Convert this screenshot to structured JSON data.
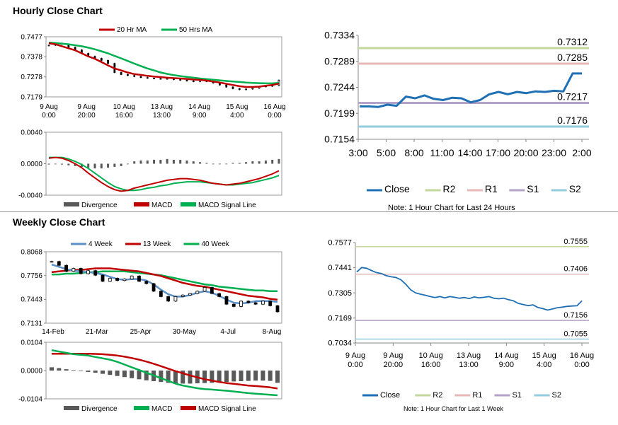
{
  "titles": {
    "hourly": "Hourly Close Chart",
    "weekly": "Weekly Close Chart"
  },
  "colors": {
    "ma20": "#c00000",
    "ma50": "#00b050",
    "close": "#1f6fb5",
    "r2": "#c3d69b",
    "r1": "#e6b9b8",
    "s1": "#b3a2c7",
    "s2": "#93cddd",
    "week4": "#5b8fc7",
    "week13": "#c00000",
    "week40": "#00b050",
    "divergence": "#595959"
  },
  "notes": {
    "hourly_levels": "Note: 1 Hour Chart for Last 24 Hours",
    "weekly_levels": "Note: 1 Hour Chart for Last 1 Week"
  },
  "chart_data": [
    {
      "id": "hourly-price",
      "type": "line",
      "legend": [
        "20 Hr MA",
        "50 Hrs MA"
      ],
      "y_ticks": [
        "0.7477",
        "0.7378",
        "0.7278",
        "0.7179"
      ],
      "ylim": [
        0.7179,
        0.7477
      ],
      "x_ticks": [
        "9 Aug|0:00",
        "9 Aug|20:00",
        "10 Aug|16:00",
        "13 Aug|13:00",
        "14 Aug|9:00",
        "15 Aug|4:00",
        "16 Aug|0:00"
      ],
      "close": [
        0.7435,
        0.7445,
        0.744,
        0.7425,
        0.7412,
        0.7395,
        0.738,
        0.737,
        0.736,
        0.7345,
        0.73,
        0.729,
        0.7285,
        0.728,
        0.7275,
        0.7272,
        0.727,
        0.7268,
        0.727,
        0.7265,
        0.7262,
        0.7258,
        0.7255,
        0.7262,
        0.7255,
        0.7248,
        0.7238,
        0.7228,
        0.722,
        0.7215,
        0.7218,
        0.7222,
        0.723,
        0.7232,
        0.7235,
        0.7262
      ],
      "series": [
        {
          "name": "20 Hr MA",
          "values": [
            0.7445,
            0.744,
            0.743,
            0.742,
            0.741,
            0.7395,
            0.738,
            0.7368,
            0.7352,
            0.7335,
            0.732,
            0.731,
            0.73,
            0.7292,
            0.7288,
            0.7283,
            0.728,
            0.7277,
            0.7274,
            0.7272,
            0.727,
            0.7268,
            0.7265,
            0.7263,
            0.726,
            0.7255,
            0.725,
            0.7244,
            0.7238,
            0.7232,
            0.7228,
            0.7228,
            0.723,
            0.7234,
            0.7238,
            0.7245
          ]
        },
        {
          "name": "50 Hrs MA",
          "values": [
            0.7448,
            0.7446,
            0.7443,
            0.744,
            0.7435,
            0.743,
            0.7423,
            0.7415,
            0.7405,
            0.7395,
            0.7382,
            0.737,
            0.7357,
            0.7344,
            0.7332,
            0.732,
            0.731,
            0.73,
            0.7293,
            0.7287,
            0.7282,
            0.7278,
            0.7274,
            0.727,
            0.7267,
            0.7264,
            0.7261,
            0.7258,
            0.7255,
            0.7253,
            0.725,
            0.7248,
            0.7247,
            0.7246,
            0.7246,
            0.7248
          ]
        }
      ]
    },
    {
      "id": "hourly-macd",
      "type": "line",
      "legend": [
        "Divergence",
        "MACD",
        "MACD Signal Line"
      ],
      "y_ticks": [
        "0.0040",
        "0.0000",
        "-0.0040"
      ],
      "ylim": [
        -0.004,
        0.004
      ],
      "series": [
        {
          "name": "MACD",
          "values": [
            0.0007,
            0.0008,
            0.0007,
            0.0004,
            0.0,
            -0.0005,
            -0.0012,
            -0.0018,
            -0.0024,
            -0.0029,
            -0.0033,
            -0.0035,
            -0.0034,
            -0.0031,
            -0.0029,
            -0.0027,
            -0.0025,
            -0.0023,
            -0.0021,
            -0.002,
            -0.0019,
            -0.0019,
            -0.002,
            -0.0021,
            -0.0023,
            -0.0025,
            -0.0026,
            -0.0027,
            -0.0026,
            -0.0025,
            -0.0023,
            -0.0021,
            -0.0019,
            -0.0016,
            -0.0013,
            -0.0009
          ]
        },
        {
          "name": "MACD Signal Line",
          "values": [
            0.0008,
            0.0008,
            0.0008,
            0.0006,
            0.0003,
            -0.0001,
            -0.0006,
            -0.0012,
            -0.0018,
            -0.0024,
            -0.0029,
            -0.0032,
            -0.0034,
            -0.0034,
            -0.0033,
            -0.0031,
            -0.003,
            -0.0028,
            -0.0027,
            -0.0025,
            -0.0024,
            -0.0023,
            -0.0023,
            -0.0023,
            -0.0024,
            -0.0025,
            -0.0026,
            -0.0027,
            -0.0027,
            -0.0026,
            -0.0025,
            -0.0024,
            -0.0022,
            -0.002,
            -0.0018,
            -0.0015
          ]
        },
        {
          "name": "Divergence",
          "values": [
            -0.0001,
            0.0,
            -0.0001,
            -0.0002,
            -0.0003,
            -0.0004,
            -0.0005,
            -0.0006,
            -0.0006,
            -0.0005,
            -0.0004,
            -0.0003,
            0.0,
            0.0003,
            0.0004,
            0.0004,
            0.0005,
            0.0005,
            0.0006,
            0.0005,
            0.0005,
            0.0004,
            0.0003,
            0.0002,
            0.0001,
            0.0,
            0.0,
            0.0,
            0.0001,
            0.0001,
            0.0002,
            0.0003,
            0.0003,
            0.0004,
            0.0005,
            0.0006
          ]
        }
      ]
    },
    {
      "id": "hourly-levels",
      "type": "line",
      "y_ticks": [
        "0.7334",
        "0.7289",
        "0.7244",
        "0.7199",
        "0.7154"
      ],
      "ylim": [
        0.7154,
        0.7334
      ],
      "x_ticks": [
        "3:00",
        "5:00",
        "8:00",
        "11:00",
        "14:00",
        "17:00",
        "20:00",
        "23:00",
        "2:00"
      ],
      "legend": [
        "Close",
        "R2",
        "R1",
        "S1",
        "S2"
      ],
      "levels": [
        {
          "name": "R2",
          "value": 0.7312,
          "label": "0.7312"
        },
        {
          "name": "R1",
          "value": 0.7285,
          "label": "0.7285"
        },
        {
          "name": "S1",
          "value": 0.7217,
          "label": "0.7217"
        },
        {
          "name": "S2",
          "value": 0.7176,
          "label": "0.7176"
        }
      ],
      "close": [
        0.7211,
        0.7211,
        0.721,
        0.7214,
        0.7212,
        0.7228,
        0.7225,
        0.723,
        0.7224,
        0.7222,
        0.7226,
        0.7225,
        0.7218,
        0.7222,
        0.7232,
        0.7236,
        0.7232,
        0.7236,
        0.7234,
        0.7237,
        0.7236,
        0.7238,
        0.7237,
        0.7268,
        0.7268
      ]
    },
    {
      "id": "weekly-price",
      "type": "line",
      "legend": [
        "4 Week",
        "13 Week",
        "40 Week"
      ],
      "y_ticks": [
        "0.8068",
        "0.7756",
        "0.7443",
        "0.7131"
      ],
      "ylim": [
        0.7131,
        0.8068
      ],
      "x_ticks": [
        "14-Feb",
        "21-Mar",
        "25-Apr",
        "30-May",
        "4-Jul",
        "8-Aug"
      ],
      "close": [
        0.794,
        0.789,
        0.781,
        0.785,
        0.778,
        0.782,
        0.776,
        0.768,
        0.772,
        0.769,
        0.771,
        0.775,
        0.768,
        0.765,
        0.755,
        0.748,
        0.742,
        0.748,
        0.75,
        0.752,
        0.755,
        0.76,
        0.752,
        0.748,
        0.738,
        0.735,
        0.742,
        0.74,
        0.738,
        0.742,
        0.736,
        0.728
      ],
      "series": [
        {
          "name": "4 Week",
          "values": [
            0.79,
            0.787,
            0.784,
            0.782,
            0.781,
            0.78,
            0.779,
            0.777,
            0.774,
            0.771,
            0.77,
            0.771,
            0.771,
            0.769,
            0.764,
            0.757,
            0.751,
            0.748,
            0.748,
            0.75,
            0.753,
            0.755,
            0.753,
            0.749,
            0.744,
            0.74,
            0.739,
            0.74,
            0.742,
            0.742,
            0.742,
            0.741
          ]
        },
        {
          "name": "13 Week",
          "values": [
            0.78,
            0.781,
            0.782,
            0.783,
            0.783,
            0.784,
            0.785,
            0.785,
            0.785,
            0.784,
            0.783,
            0.782,
            0.781,
            0.779,
            0.777,
            0.775,
            0.772,
            0.769,
            0.766,
            0.764,
            0.762,
            0.761,
            0.759,
            0.757,
            0.755,
            0.753,
            0.751,
            0.749,
            0.748,
            0.747,
            0.745,
            0.744
          ]
        },
        {
          "name": "40 Week",
          "values": [
            0.777,
            0.777,
            0.778,
            0.778,
            0.779,
            0.78,
            0.78,
            0.781,
            0.781,
            0.781,
            0.781,
            0.78,
            0.779,
            0.778,
            0.777,
            0.776,
            0.774,
            0.772,
            0.77,
            0.768,
            0.766,
            0.764,
            0.763,
            0.761,
            0.76,
            0.759,
            0.758,
            0.757,
            0.756,
            0.756,
            0.755,
            0.755
          ]
        }
      ]
    },
    {
      "id": "weekly-macd",
      "type": "line",
      "legend": [
        "Divergence",
        "MACD",
        "MACD Signal Line"
      ],
      "y_ticks": [
        "0.0104",
        "0.0000",
        "-0.0104"
      ],
      "ylim": [
        -0.0104,
        0.0104
      ],
      "series": [
        {
          "name": "MACD",
          "values": [
            0.0075,
            0.007,
            0.0065,
            0.006,
            0.0058,
            0.0055,
            0.005,
            0.0045,
            0.004,
            0.0032,
            0.0022,
            0.0012,
            0.0002,
            -0.0008,
            -0.0018,
            -0.0028,
            -0.0038,
            -0.0048,
            -0.0055,
            -0.006,
            -0.0065,
            -0.0068,
            -0.007,
            -0.0072,
            -0.0074,
            -0.0077,
            -0.008,
            -0.0083,
            -0.0085,
            -0.0087,
            -0.0089,
            -0.0091
          ]
        },
        {
          "name": "MACD Signal Line",
          "values": [
            0.0062,
            0.0062,
            0.0062,
            0.0062,
            0.0062,
            0.0062,
            0.0061,
            0.006,
            0.0058,
            0.0055,
            0.0051,
            0.0046,
            0.004,
            0.0033,
            0.0025,
            0.0016,
            0.0007,
            -0.0002,
            -0.001,
            -0.0018,
            -0.0025,
            -0.0032,
            -0.0037,
            -0.0042,
            -0.0046,
            -0.0049,
            -0.0052,
            -0.0055,
            -0.0057,
            -0.0059,
            -0.0062,
            -0.0066
          ]
        },
        {
          "name": "Divergence",
          "values": [
            0.0012,
            0.0009,
            0.0005,
            0.0002,
            -0.0002,
            -0.0005,
            -0.0008,
            -0.0012,
            -0.0016,
            -0.002,
            -0.0024,
            -0.0028,
            -0.0032,
            -0.0036,
            -0.0039,
            -0.0042,
            -0.0045,
            -0.0047,
            -0.0048,
            -0.0048,
            -0.0047,
            -0.0046,
            -0.0045,
            -0.0044,
            -0.0042,
            -0.004,
            -0.0039,
            -0.0038,
            -0.0037,
            -0.0037,
            -0.0038,
            -0.0045
          ]
        }
      ]
    },
    {
      "id": "weekly-levels",
      "type": "line",
      "y_ticks": [
        "0.7577",
        "0.7441",
        "0.7305",
        "0.7169",
        "0.7034"
      ],
      "ylim": [
        0.7034,
        0.7577
      ],
      "x_ticks": [
        "9 Aug|0:00",
        "9 Aug|20:00",
        "10 Aug|16:00",
        "13 Aug|13:00",
        "14 Aug|9:00",
        "15 Aug|4:00",
        "16 Aug|0:00"
      ],
      "legend": [
        "Close",
        "R2",
        "R1",
        "S1",
        "S2"
      ],
      "levels": [
        {
          "name": "R2",
          "value": 0.7555,
          "label": "0.7555"
        },
        {
          "name": "R1",
          "value": 0.7406,
          "label": "0.7406"
        },
        {
          "name": "S1",
          "value": 0.7156,
          "label": "0.7156"
        },
        {
          "name": "S2",
          "value": 0.7055,
          "label": "0.7055"
        }
      ],
      "close": [
        0.7418,
        0.7442,
        0.7438,
        0.7426,
        0.7415,
        0.741,
        0.7398,
        0.7392,
        0.7388,
        0.7376,
        0.7352,
        0.7322,
        0.7305,
        0.7298,
        0.7292,
        0.7285,
        0.728,
        0.7285,
        0.7278,
        0.7285,
        0.7281,
        0.7276,
        0.728,
        0.7274,
        0.7283,
        0.7278,
        0.7281,
        0.7285,
        0.7276,
        0.7273,
        0.7276,
        0.7268,
        0.7262,
        0.7248,
        0.7242,
        0.7236,
        0.724,
        0.7226,
        0.722,
        0.7212,
        0.7218,
        0.7225,
        0.7228,
        0.7232,
        0.7234,
        0.7235,
        0.7262
      ]
    }
  ]
}
